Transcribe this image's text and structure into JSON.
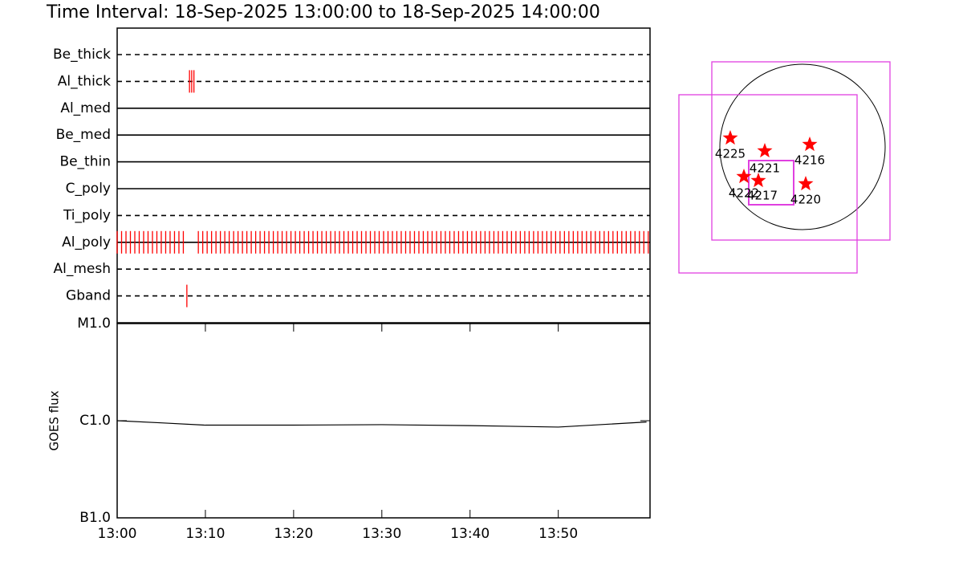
{
  "title": "Time Interval: 18-Sep-2025 13:00:00 to 18-Sep-2025 14:00:00",
  "chart_data": [
    {
      "type": "timeline",
      "categories": [
        "Be_thick",
        "Al_thick",
        "Al_med",
        "Be_med",
        "Be_thin",
        "C_poly",
        "Ti_poly",
        "Al_poly",
        "Al_mesh",
        "Gband"
      ],
      "line_styles": [
        "dashed",
        "dashed",
        "solid",
        "solid",
        "solid",
        "solid",
        "dashed",
        "solid",
        "dashed",
        "dashed"
      ],
      "color": "#ff0000",
      "xlim": [
        0,
        60.4
      ],
      "events": [
        [],
        [
          8.2,
          8.45,
          8.7
        ],
        [],
        [],
        [],
        [],
        [],
        [
          0.0,
          0.5,
          1.0,
          1.5,
          2.0,
          2.5,
          3.0,
          3.5,
          4.0,
          4.5,
          5.0,
          5.5,
          6.0,
          6.5,
          7.0,
          7.5,
          9.2,
          9.7,
          10.2,
          10.7,
          11.2,
          11.7,
          12.2,
          12.7,
          13.2,
          13.7,
          14.2,
          14.7,
          15.2,
          15.7,
          16.2,
          16.7,
          17.2,
          17.7,
          18.2,
          18.7,
          19.2,
          19.7,
          20.2,
          20.7,
          21.2,
          21.7,
          22.2,
          22.7,
          23.2,
          23.7,
          24.2,
          24.7,
          25.2,
          25.7,
          26.2,
          26.7,
          27.2,
          27.7,
          28.2,
          28.7,
          29.2,
          29.7,
          30.2,
          30.7,
          31.2,
          31.7,
          32.2,
          32.7,
          33.2,
          33.7,
          34.2,
          34.7,
          35.2,
          35.7,
          36.2,
          36.7,
          37.2,
          37.7,
          38.2,
          38.7,
          39.2,
          39.7,
          40.2,
          40.7,
          41.2,
          41.7,
          42.2,
          42.7,
          43.2,
          43.7,
          44.2,
          44.7,
          45.2,
          45.7,
          46.2,
          46.7,
          47.2,
          47.7,
          48.2,
          48.7,
          49.2,
          49.7,
          50.2,
          50.7,
          51.2,
          51.7,
          52.2,
          52.7,
          53.2,
          53.7,
          54.2,
          54.7,
          55.2,
          55.7,
          56.2,
          56.7,
          57.2,
          57.7,
          58.2,
          58.7,
          59.2,
          59.7,
          60.2
        ],
        [],
        [
          7.9
        ]
      ]
    },
    {
      "type": "line",
      "y_label": "GOES flux",
      "log_scale": true,
      "color": "#000000",
      "x": [
        0,
        5,
        10,
        20,
        30,
        40,
        50,
        60
      ],
      "values": [
        1e-06,
        9.5e-07,
        9e-07,
        9e-07,
        9.1e-07,
        8.9e-07,
        8.6e-07,
        9.7e-07
      ],
      "xlim": [
        0,
        60.4
      ],
      "xticks": [
        {
          "value": 0,
          "label": "13:00"
        },
        {
          "value": 10,
          "label": "13:10"
        },
        {
          "value": 20,
          "label": "13:20"
        },
        {
          "value": 30,
          "label": "13:30"
        },
        {
          "value": 40,
          "label": "13:40"
        },
        {
          "value": 50,
          "label": "13:50"
        }
      ],
      "ylim": [
        1e-07,
        1e-05
      ],
      "yticks": [
        {
          "value": 1e-07,
          "label": "B1.0"
        },
        {
          "value": 1e-06,
          "label": "C1.0"
        },
        {
          "value": 1e-05,
          "label": "M1.0"
        }
      ]
    }
  ],
  "map": {
    "labels": [
      "4225",
      "4221",
      "4216",
      "4222",
      "4217",
      "4220"
    ]
  }
}
